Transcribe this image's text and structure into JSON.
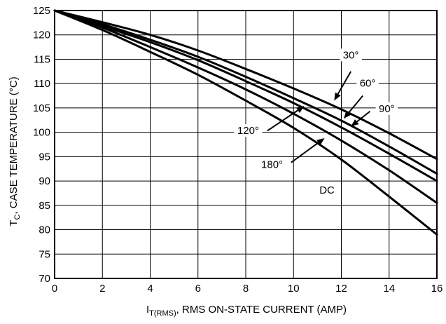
{
  "chart_data": {
    "type": "line",
    "xlabel": {
      "main": "I",
      "sub": "T(RMS)",
      "rest": ", RMS ON-STATE CURRENT (AMP)"
    },
    "ylabel": {
      "main": "T",
      "sub": "C",
      "rest": ", CASE TEMPERATURE (°C)"
    },
    "xlim": [
      0,
      16
    ],
    "ylim": [
      70,
      125
    ],
    "xticks": [
      0,
      2,
      4,
      6,
      8,
      10,
      12,
      14,
      16
    ],
    "yticks": [
      70,
      75,
      80,
      85,
      90,
      95,
      100,
      105,
      110,
      115,
      120,
      125
    ],
    "grid": true,
    "series": [
      {
        "name": "30°",
        "x": [
          0,
          2,
          4,
          6,
          8,
          10,
          12,
          14,
          16
        ],
        "y": [
          125,
          122.6,
          120,
          116.8,
          113,
          109,
          104.7,
          99.8,
          94.5
        ]
      },
      {
        "name": "60°",
        "x": [
          0,
          2,
          4,
          6,
          8,
          10,
          12,
          14,
          16
        ],
        "y": [
          125,
          122.2,
          119,
          115.5,
          111.4,
          107,
          102.4,
          97.1,
          91.5
        ]
      },
      {
        "name": "90°",
        "x": [
          0,
          2,
          4,
          6,
          8,
          10,
          12,
          14,
          16
        ],
        "y": [
          125,
          121.8,
          118.5,
          114.8,
          110.5,
          106,
          101,
          95.6,
          90
        ]
      },
      {
        "name": "120°",
        "x": [
          0,
          2,
          4,
          6,
          8,
          10,
          12,
          14,
          16
        ],
        "y": [
          125,
          121.5,
          117.5,
          113.3,
          108.8,
          103.8,
          98.3,
          92.2,
          85.5
        ]
      },
      {
        "name": "180°",
        "x": [
          0,
          2,
          4,
          6,
          8,
          10,
          12,
          14,
          16
        ],
        "y": [
          125,
          121,
          116.5,
          111.8,
          106.5,
          100.9,
          94.4,
          86.8,
          79
        ]
      },
      {
        "name": "DC",
        "x": [],
        "y": []
      }
    ],
    "annotations": [
      {
        "text": "30°",
        "label_at": [
          12.4,
          115.3
        ],
        "arrow_from": [
          12.4,
          112.5
        ],
        "arrow_to": [
          11.7,
          106.5
        ]
      },
      {
        "text": "60°",
        "label_at": [
          13.1,
          109.5
        ],
        "arrow_from": [
          12.9,
          107.5
        ],
        "arrow_to": [
          12.1,
          102.8
        ]
      },
      {
        "text": "90°",
        "label_at": [
          13.9,
          104.3
        ],
        "arrow_from": [
          13.2,
          104.3
        ],
        "arrow_to": [
          12.4,
          101.2
        ]
      },
      {
        "text": "120°",
        "label_at": [
          8.1,
          99.8
        ],
        "arrow_from": [
          8.9,
          100.3
        ],
        "arrow_to": [
          10.45,
          105.4
        ]
      },
      {
        "text": "180°",
        "label_at": [
          9.1,
          92.8
        ],
        "arrow_from": [
          9.9,
          93.8
        ],
        "arrow_to": [
          11.3,
          98.8
        ]
      },
      {
        "text": "DC",
        "label_at": [
          11.4,
          87.6
        ]
      }
    ]
  }
}
